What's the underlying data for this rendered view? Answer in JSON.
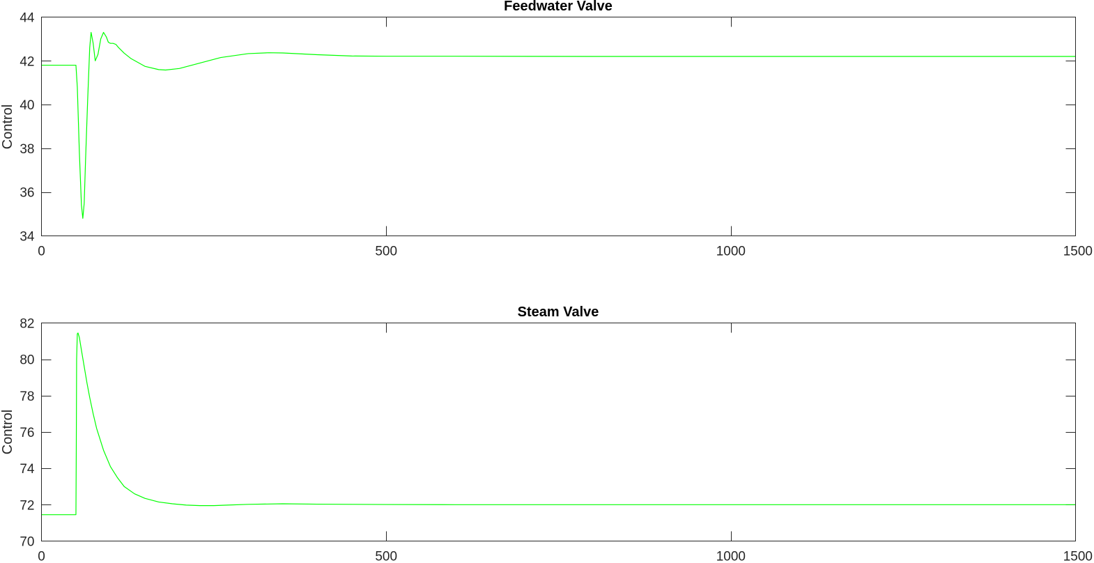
{
  "chart_data": [
    {
      "type": "line",
      "title": "Feedwater Valve",
      "xlabel": "",
      "ylabel": "Control",
      "xlim": [
        0,
        1500
      ],
      "ylim": [
        34,
        44
      ],
      "xticks": [
        0,
        500,
        1000,
        1500
      ],
      "yticks": [
        34,
        36,
        38,
        40,
        42,
        44
      ],
      "grid": false,
      "series": [
        {
          "color": "#00ff00",
          "x": [
            0,
            50,
            52,
            55,
            58,
            60,
            62,
            64,
            67,
            70,
            72,
            75,
            78,
            82,
            86,
            90,
            94,
            97,
            100,
            104,
            108,
            112,
            120,
            130,
            150,
            170,
            180,
            200,
            230,
            260,
            300,
            330,
            350,
            400,
            450,
            500,
            600,
            800,
            1000,
            1200,
            1500
          ],
          "y": [
            41.8,
            41.8,
            40.8,
            37.8,
            35.4,
            34.8,
            35.5,
            37.5,
            40.2,
            42.6,
            43.3,
            42.8,
            42.0,
            42.3,
            43.0,
            43.3,
            43.1,
            42.85,
            42.8,
            42.8,
            42.75,
            42.6,
            42.35,
            42.1,
            41.75,
            41.6,
            41.58,
            41.65,
            41.9,
            42.15,
            42.33,
            42.37,
            42.36,
            42.28,
            42.22,
            42.21,
            42.21,
            42.2,
            42.2,
            42.2,
            42.2
          ]
        }
      ]
    },
    {
      "type": "line",
      "title": "Steam Valve",
      "xlabel": "",
      "ylabel": "Control",
      "xlim": [
        0,
        1500
      ],
      "ylim": [
        70,
        82
      ],
      "xticks": [
        0,
        500,
        1000,
        1500
      ],
      "yticks": [
        70,
        72,
        74,
        76,
        78,
        80,
        82
      ],
      "grid": false,
      "series": [
        {
          "color": "#00ff00",
          "x": [
            0,
            50,
            50.5,
            51,
            52,
            53,
            55,
            58,
            62,
            66,
            70,
            75,
            80,
            90,
            100,
            110,
            120,
            135,
            150,
            170,
            190,
            210,
            230,
            250,
            270,
            300,
            350,
            400,
            450,
            500,
            600,
            800,
            1000,
            1500
          ],
          "y": [
            71.45,
            71.45,
            75.0,
            80.0,
            81.4,
            81.45,
            81.2,
            80.5,
            79.6,
            78.7,
            77.9,
            77.0,
            76.2,
            75.0,
            74.1,
            73.5,
            73.0,
            72.6,
            72.35,
            72.15,
            72.05,
            71.98,
            71.95,
            71.95,
            71.98,
            72.02,
            72.05,
            72.03,
            72.02,
            72.01,
            72.0,
            72.0,
            72.0,
            72.0
          ]
        }
      ]
    }
  ]
}
